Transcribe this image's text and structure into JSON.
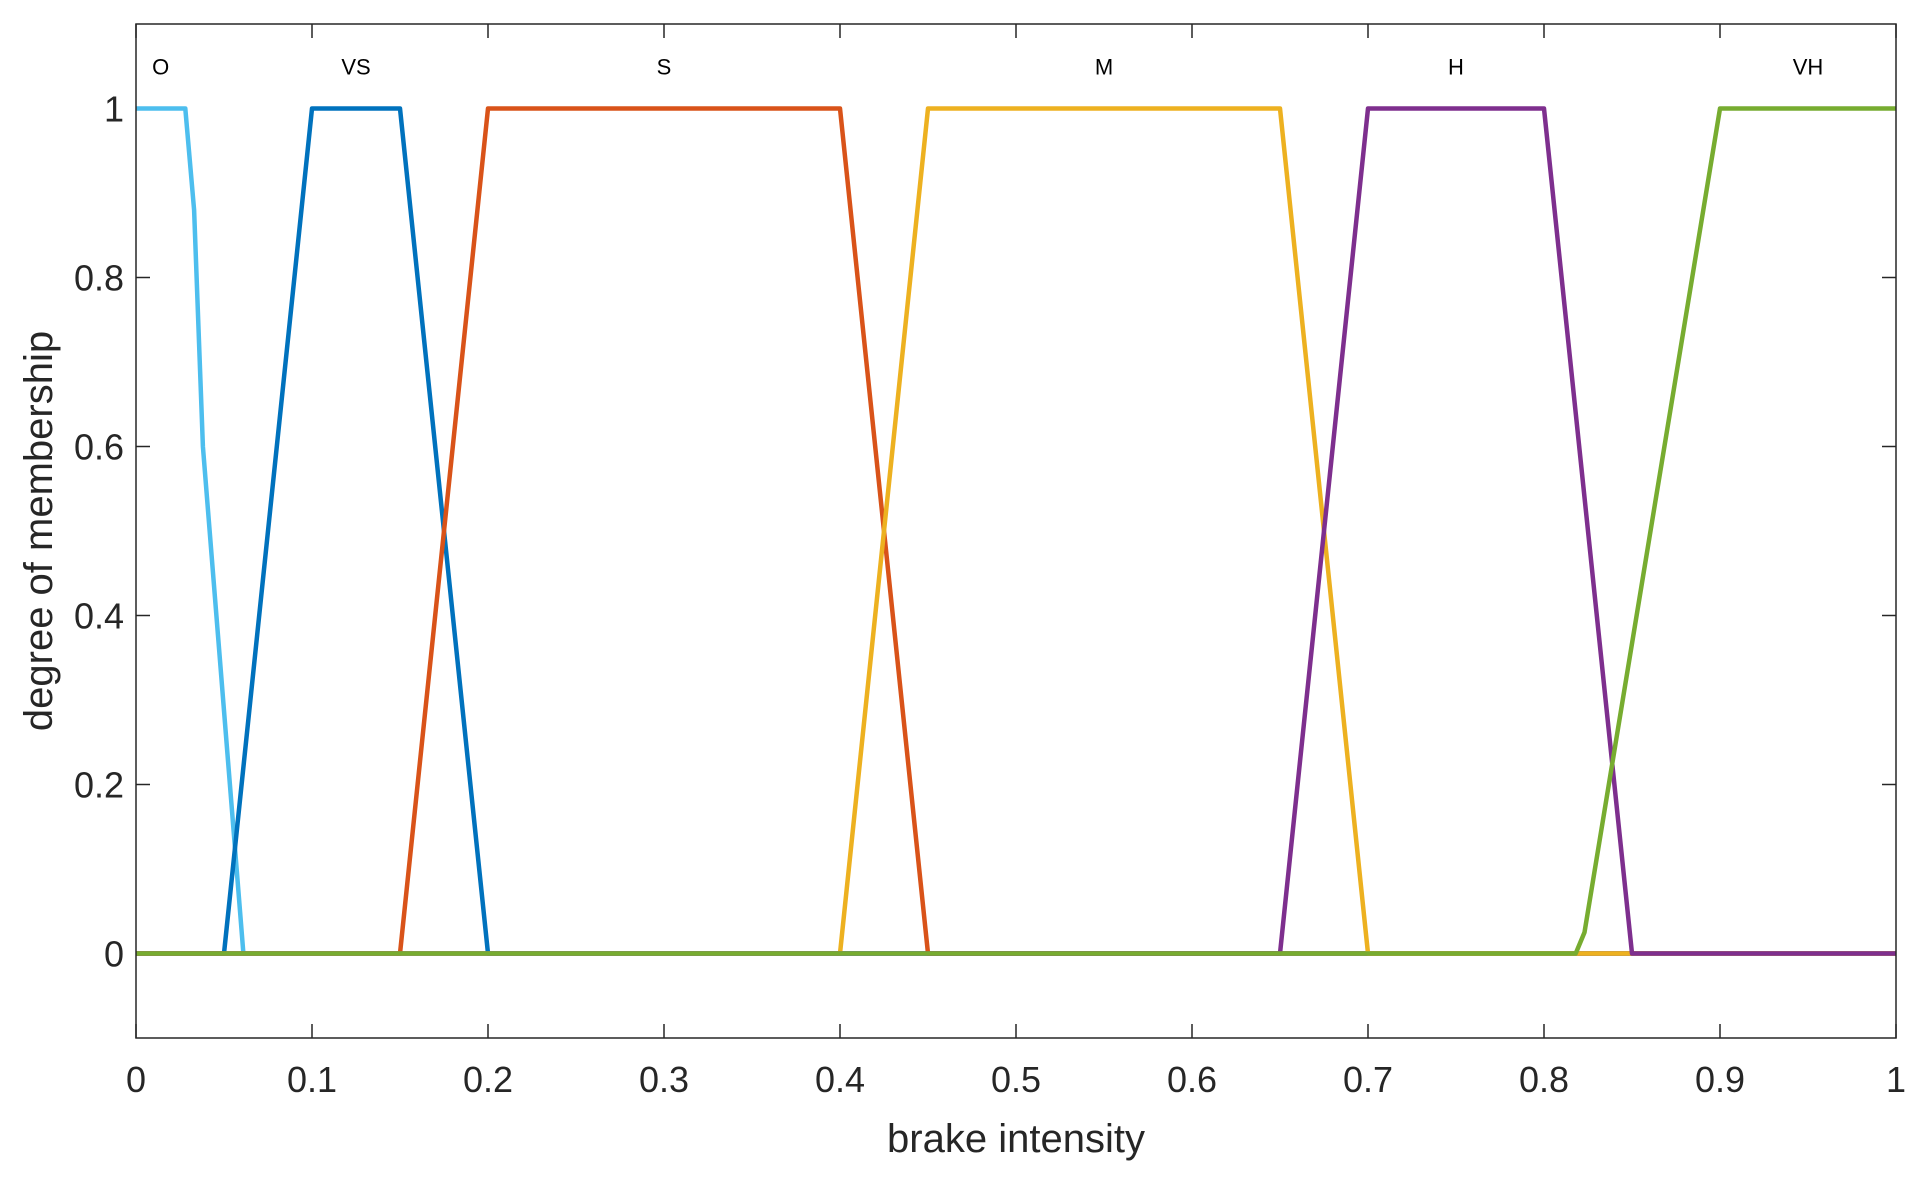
{
  "chart_data": {
    "type": "line",
    "title": "",
    "xlabel": "brake intensity",
    "ylabel": "degree of membership",
    "xlim": [
      0,
      1
    ],
    "ylim": [
      -0.1,
      1.1
    ],
    "xticks": [
      0,
      0.1,
      0.2,
      0.3,
      0.4,
      0.5,
      0.6,
      0.7,
      0.8,
      0.9,
      1
    ],
    "xtick_labels": [
      "0",
      "0.1",
      "0.2",
      "0.3",
      "0.4",
      "0.5",
      "0.6",
      "0.7",
      "0.8",
      "0.9",
      "1"
    ],
    "yticks": [
      0,
      0.2,
      0.4,
      0.6,
      0.8,
      1
    ],
    "ytick_labels": [
      "0",
      "0.2",
      "0.4",
      "0.6",
      "0.8",
      "1"
    ],
    "grid": false,
    "legend": "none",
    "series": [
      {
        "name": "O",
        "color": "#4DBEEE",
        "label_x": 0.014,
        "x": [
          0,
          0.028,
          0.033,
          0.038,
          0.061,
          1
        ],
        "y": [
          1,
          1,
          0.88,
          0.6,
          0,
          0
        ]
      },
      {
        "name": "VS",
        "color": "#0072BD",
        "label_x": 0.125,
        "x": [
          0,
          0.05,
          0.1,
          0.15,
          0.2,
          1
        ],
        "y": [
          0,
          0,
          1,
          1,
          0,
          0
        ]
      },
      {
        "name": "S",
        "color": "#D95319",
        "label_x": 0.3,
        "x": [
          0,
          0.15,
          0.2,
          0.4,
          0.45,
          1
        ],
        "y": [
          0,
          0,
          1,
          1,
          0,
          0
        ]
      },
      {
        "name": "M",
        "color": "#EDB120",
        "label_x": 0.55,
        "x": [
          0,
          0.4,
          0.45,
          0.65,
          0.7,
          1
        ],
        "y": [
          0,
          0,
          1,
          1,
          0,
          0
        ]
      },
      {
        "name": "H",
        "color": "#7E2F8E",
        "label_x": 0.75,
        "x": [
          0,
          0.65,
          0.7,
          0.8,
          0.85,
          1
        ],
        "y": [
          0,
          0,
          1,
          1,
          0,
          0
        ]
      },
      {
        "name": "VH",
        "color": "#77AC30",
        "label_x": 0.95,
        "x": [
          0,
          0.05,
          0.818,
          0.823,
          0.9,
          1
        ],
        "y": [
          0,
          0,
          0,
          0.025,
          1,
          1
        ]
      }
    ]
  }
}
